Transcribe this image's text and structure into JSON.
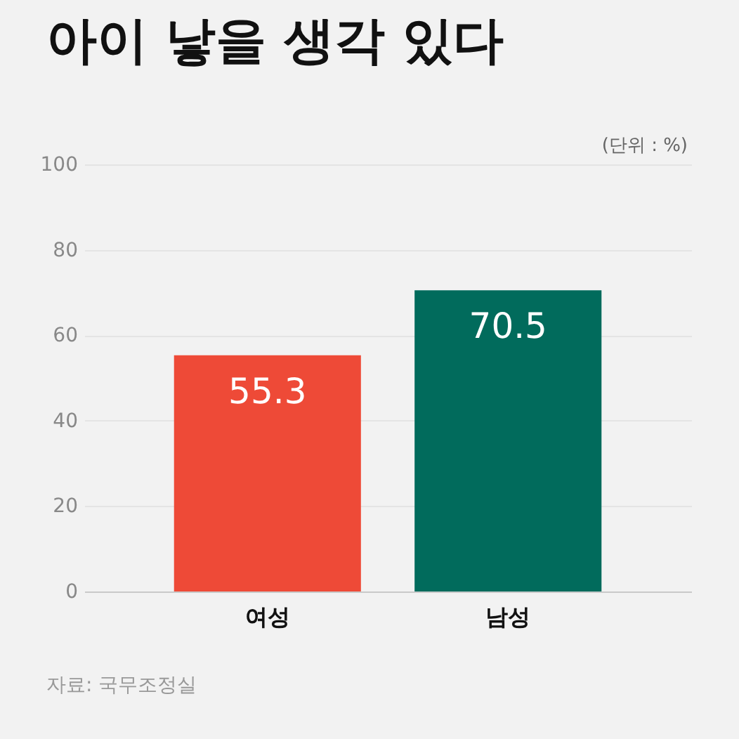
{
  "chart_data": {
    "type": "bar",
    "title": "아이 낳을 생각 있다",
    "ylabel": "(단위 : %)",
    "categories": [
      "여성",
      "남성"
    ],
    "values": [
      55.3,
      70.5
    ],
    "colors": [
      "#ee4a37",
      "#016b5c"
    ],
    "ylim": [
      0,
      100
    ],
    "yticks": [
      0,
      20,
      40,
      60,
      80,
      100
    ],
    "grid": "y",
    "data_labels": true,
    "annotations": [
      "자료: 국무조정실"
    ]
  }
}
